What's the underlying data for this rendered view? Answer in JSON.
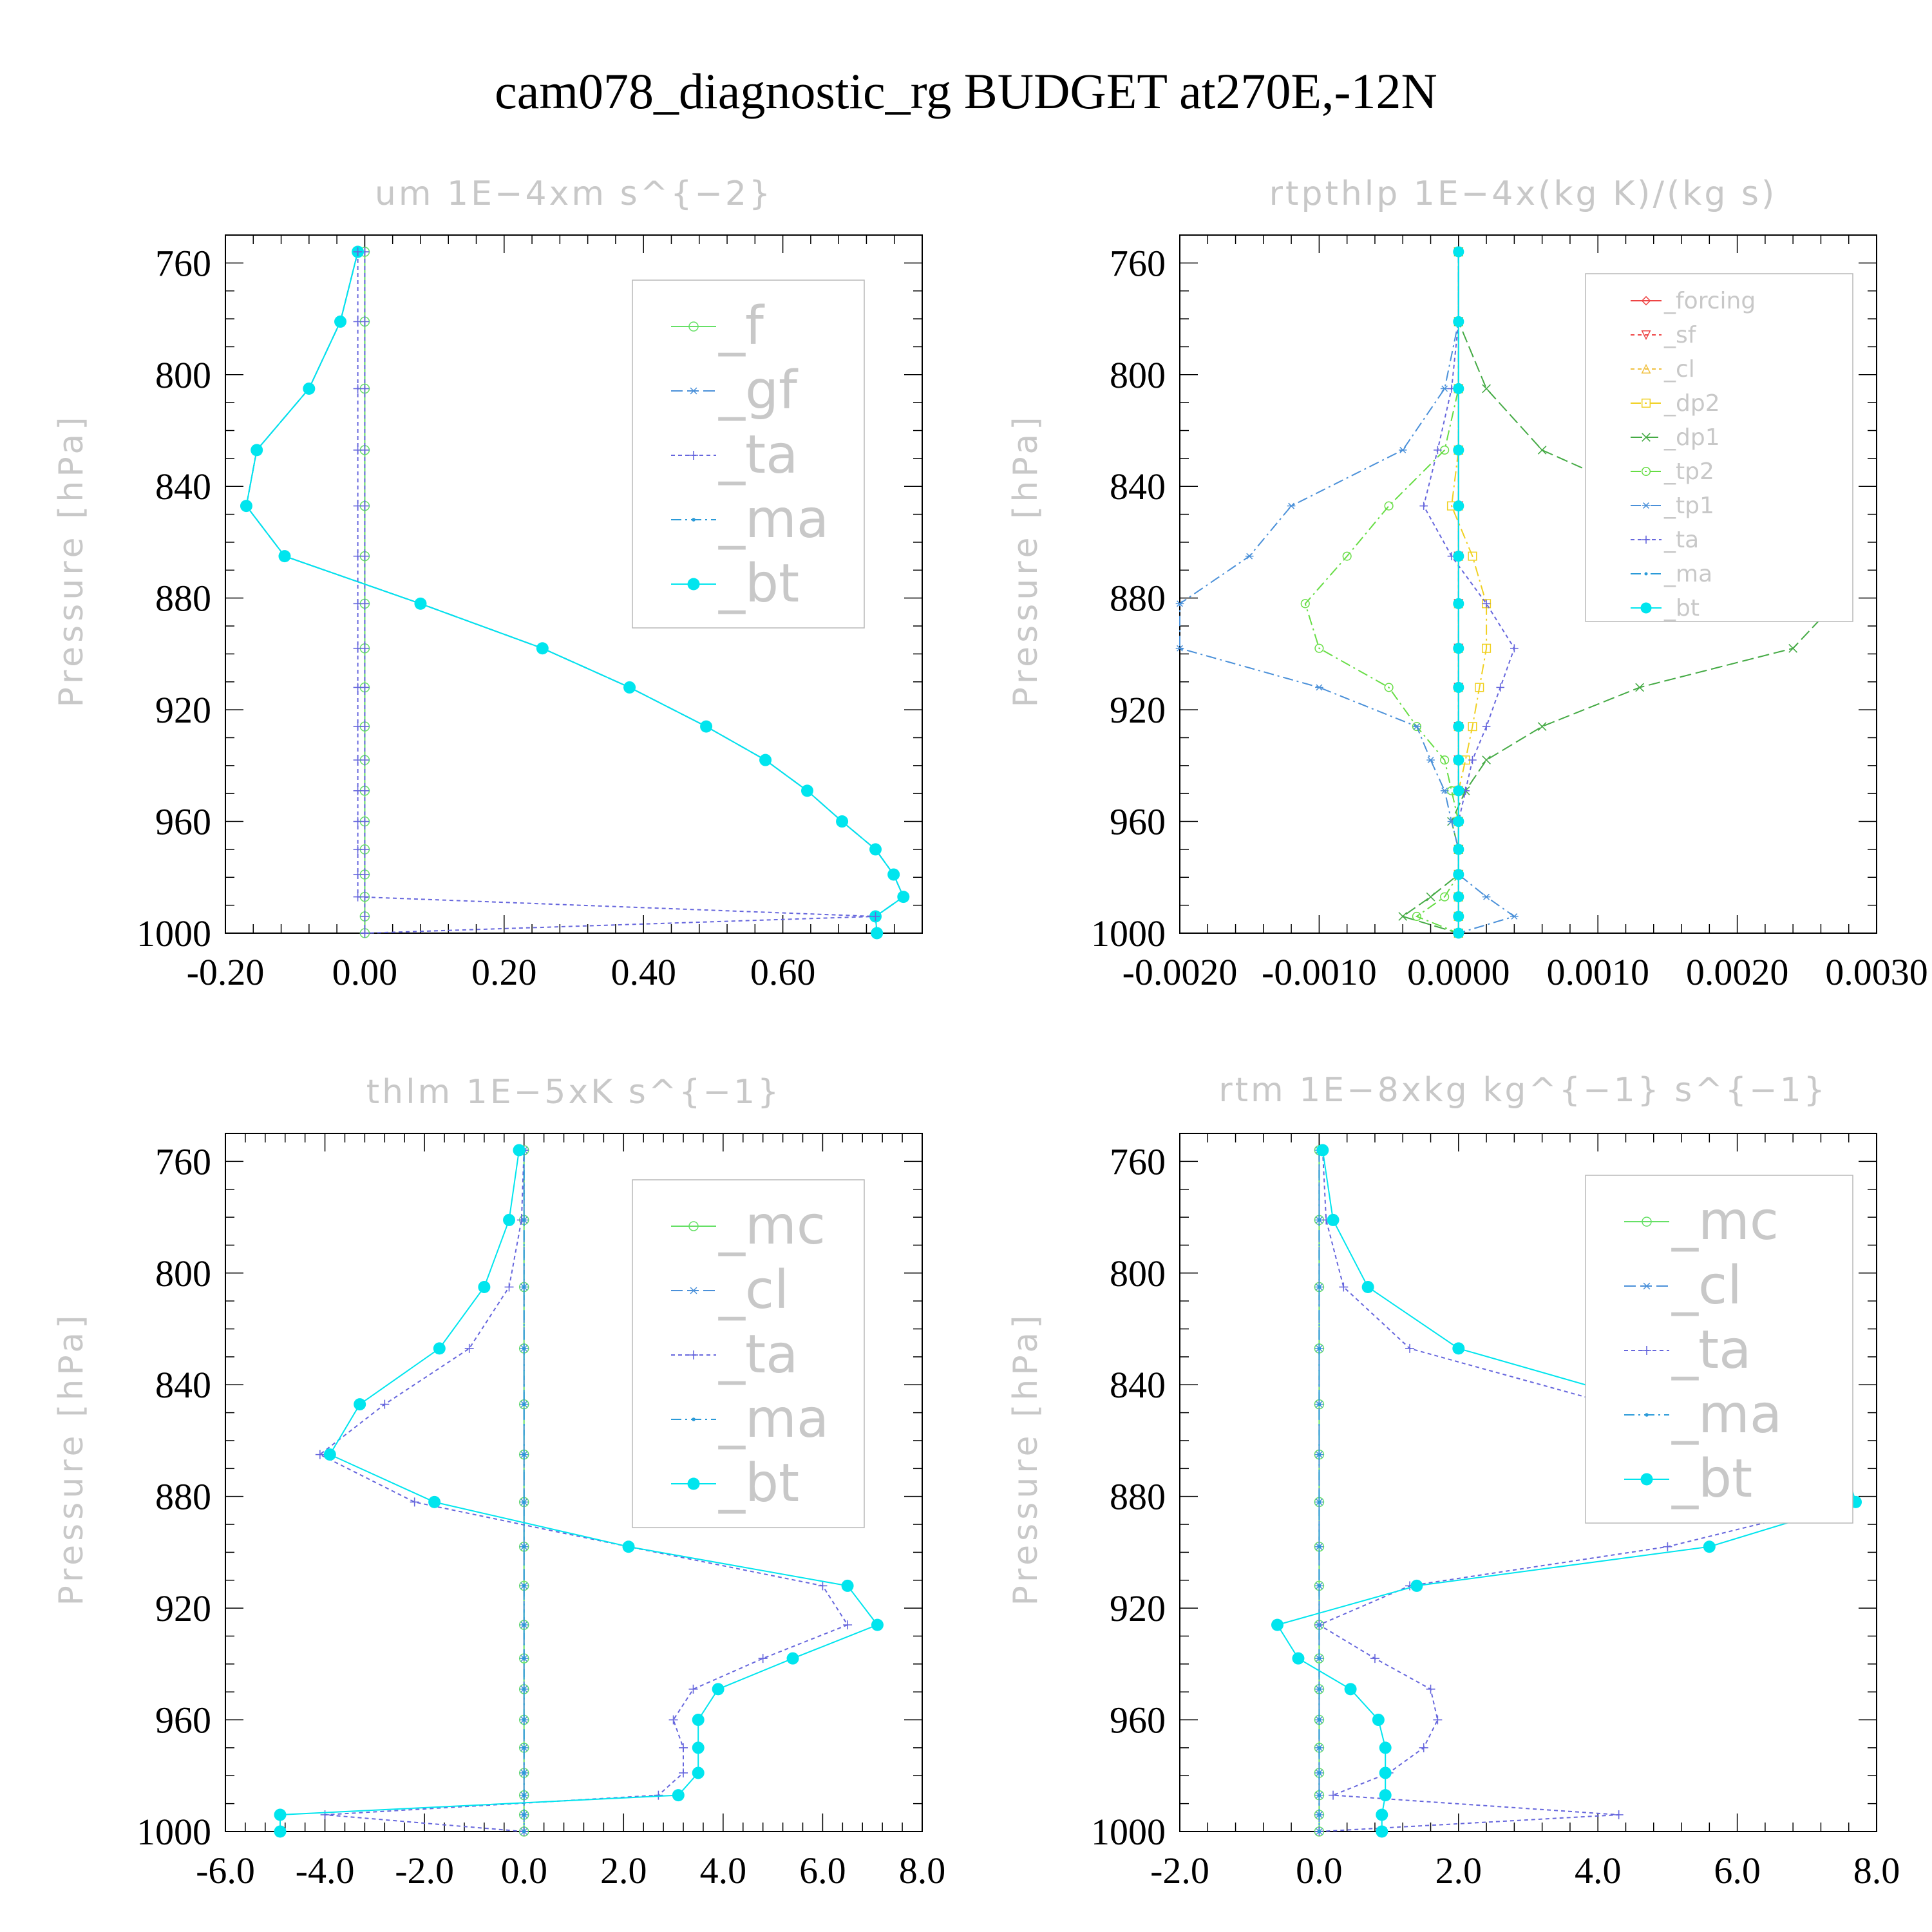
{
  "figure_title": "cam078_diagnostic_rg  BUDGET at270E,-12N",
  "chart_data": [
    {
      "type": "line",
      "title": "um   1E−4xm s^{−2}",
      "ylabel": "Pressure [hPa]",
      "xlabel": "",
      "xlim": [
        -0.2,
        0.8
      ],
      "ylim": [
        1000,
        750
      ],
      "xticks": [
        -0.2,
        0.0,
        0.2,
        0.4,
        0.6
      ],
      "xtick_labels": [
        "-0.20",
        "0.00",
        "0.20",
        "0.40",
        "0.60"
      ],
      "yticks": [
        760,
        800,
        840,
        880,
        920,
        960,
        1000
      ],
      "ytick_labels": [
        "760",
        "800",
        "840",
        "880",
        "920",
        "960",
        "1000"
      ],
      "legend_position": "top-right",
      "legend_size": "large",
      "y": [
        756,
        781,
        805,
        827,
        847,
        865,
        882,
        898,
        912,
        926,
        938,
        949,
        960,
        970,
        979,
        987,
        994,
        1000
      ],
      "series": [
        {
          "name": "_f",
          "color": "#66e066",
          "marker": "circle",
          "dash": "none",
          "values": [
            0,
            0,
            0,
            0,
            0,
            0,
            0,
            0,
            0,
            0,
            0,
            0,
            0,
            0,
            0,
            0,
            0,
            0
          ]
        },
        {
          "name": "_gf",
          "color": "#4a90d9",
          "marker": "star",
          "dash": "long",
          "values": [
            -0.01,
            -0.035,
            -0.08,
            -0.155,
            -0.17,
            -0.115,
            0.08,
            0.255,
            0.38,
            0.49,
            0.575,
            0.635,
            0.685,
            0.733,
            0.759,
            0.773,
            0.733,
            0.735
          ]
        },
        {
          "name": "_ta",
          "color": "#6666dd",
          "marker": "plus",
          "dash": "short",
          "values": [
            0,
            0,
            0,
            0,
            0,
            0,
            0,
            0,
            0,
            0,
            0,
            0,
            0,
            0,
            0,
            0,
            0,
            0
          ]
        },
        {
          "name": "_ma",
          "color": "#2a9ad8",
          "marker": "dot",
          "dash": "dashdot",
          "values": [
            -0.01,
            -0.035,
            -0.08,
            -0.155,
            -0.17,
            -0.115,
            0.08,
            0.255,
            0.38,
            0.49,
            0.575,
            0.635,
            0.685,
            0.733,
            0.759,
            0.773,
            0.733,
            0.735
          ]
        },
        {
          "name": "_bt",
          "color": "#00e5ee",
          "marker": "bigdot",
          "dash": "none",
          "values": [
            -0.01,
            -0.035,
            -0.08,
            -0.155,
            -0.17,
            -0.115,
            0.08,
            0.255,
            0.38,
            0.49,
            0.575,
            0.635,
            0.685,
            0.733,
            0.759,
            0.773,
            0.733,
            0.735
          ]
        },
        {
          "name": "",
          "color": "#6666dd",
          "marker": "plus",
          "dash": "short",
          "values": [
            -0.01,
            -0.01,
            -0.01,
            -0.01,
            -0.01,
            -0.01,
            -0.01,
            -0.01,
            -0.01,
            -0.01,
            -0.01,
            -0.01,
            -0.01,
            -0.01,
            -0.01,
            -0.01,
            0.733,
            0.0
          ]
        }
      ]
    },
    {
      "type": "line",
      "title": "rtpthlp   1E−4x(kg K)/(kg s)",
      "ylabel": "Pressure [hPa]",
      "xlabel": "",
      "xlim": [
        -0.002,
        0.003
      ],
      "ylim": [
        1000,
        750
      ],
      "xticks": [
        -0.002,
        -0.001,
        0.0,
        0.001,
        0.002,
        0.003
      ],
      "xtick_labels": [
        "-0.0020",
        "-0.0010",
        "0.0000",
        "0.0010",
        "0.0020",
        "0.0030"
      ],
      "yticks": [
        760,
        800,
        840,
        880,
        920,
        960,
        1000
      ],
      "ytick_labels": [
        "760",
        "800",
        "840",
        "880",
        "920",
        "960",
        "1000"
      ],
      "legend_position": "top-right",
      "legend_size": "small",
      "y": [
        756,
        781,
        805,
        827,
        847,
        865,
        882,
        898,
        912,
        926,
        938,
        949,
        960,
        970,
        979,
        987,
        994,
        1000
      ],
      "series": [
        {
          "name": "_forcing",
          "color": "#ee4444",
          "marker": "diamond",
          "dash": "none",
          "values": [
            0,
            0,
            0,
            0,
            0,
            0,
            0,
            0,
            0,
            0,
            0,
            0,
            0,
            0,
            0,
            0,
            0,
            0
          ]
        },
        {
          "name": "_sf",
          "color": "#ee4444",
          "marker": "tridown",
          "dash": "short",
          "values": [
            0,
            0,
            0,
            0,
            0,
            0,
            0,
            0,
            0,
            0,
            0,
            0,
            0,
            0,
            0,
            0,
            0,
            0
          ]
        },
        {
          "name": "_cl",
          "color": "#f0c040",
          "marker": "triup",
          "dash": "short",
          "values": [
            0,
            0,
            0,
            0,
            0,
            0,
            0,
            0,
            0,
            0,
            0,
            0,
            0,
            0,
            0,
            0,
            0,
            0
          ]
        },
        {
          "name": "_dp2",
          "color": "#f0d020",
          "marker": "square",
          "dash": "dashdot",
          "values": [
            0,
            0,
            0,
            0,
            -5e-05,
            0.0001,
            0.0002,
            0.0002,
            0.00015,
            0.0001,
            5e-05,
            0,
            0,
            0,
            0,
            0,
            0,
            0
          ]
        },
        {
          "name": "_dp1",
          "color": "#44aa44",
          "marker": "cross",
          "dash": "long",
          "values": [
            0,
            0,
            0.0002,
            0.0006,
            0.0015,
            0.0023,
            0.0027,
            0.0024,
            0.0013,
            0.0006,
            0.0002,
            5e-05,
            -5e-05,
            0,
            0,
            -0.0002,
            -0.0004,
            0
          ]
        },
        {
          "name": "_tp2",
          "color": "#66dd44",
          "marker": "circle",
          "dash": "dashdot",
          "values": [
            0,
            0,
            0,
            -0.0001,
            -0.0005,
            -0.0008,
            -0.0011,
            -0.001,
            -0.0005,
            -0.0003,
            -0.0001,
            -5e-05,
            0,
            0,
            0,
            -0.0001,
            -0.0003,
            0
          ]
        },
        {
          "name": "_tp1",
          "color": "#4a90d9",
          "marker": "star",
          "dash": "dashdot",
          "values": [
            0,
            0,
            -0.0001,
            -0.0004,
            -0.0012,
            -0.0015,
            -0.002,
            -0.002,
            -0.001,
            -0.0003,
            -0.0002,
            -0.0001,
            -5e-05,
            0,
            0,
            0.0002,
            0.0004,
            0
          ]
        },
        {
          "name": "_ta",
          "color": "#6666dd",
          "marker": "plus",
          "dash": "short",
          "values": [
            0,
            0,
            -5e-05,
            -0.00015,
            -0.00025,
            -5e-05,
            0.0002,
            0.0004,
            0.0003,
            0.0002,
            0.0001,
            5e-05,
            0,
            0,
            0,
            0,
            0,
            0
          ]
        },
        {
          "name": "_ma",
          "color": "#2a9ad8",
          "marker": "dot",
          "dash": "dashdot",
          "values": [
            0,
            0,
            0,
            0,
            0,
            0,
            0,
            0,
            0,
            0,
            0,
            0,
            0,
            0,
            0,
            0,
            0,
            0
          ]
        },
        {
          "name": "_bt",
          "color": "#00e5ee",
          "marker": "bigdot",
          "dash": "none",
          "values": [
            0,
            0,
            0,
            0,
            0,
            0,
            0,
            0,
            0,
            0,
            0,
            0,
            0,
            0,
            0,
            0,
            0,
            0
          ]
        }
      ]
    },
    {
      "type": "line",
      "title": "thlm   1E−5xK s^{−1}",
      "ylabel": "Pressure [hPa]",
      "xlabel": "",
      "xlim": [
        -6.0,
        8.0
      ],
      "ylim": [
        1000,
        750
      ],
      "xticks": [
        -6,
        -4,
        -2,
        0,
        2,
        4,
        6,
        8
      ],
      "xtick_labels": [
        "-6.0",
        "-4.0",
        "-2.0",
        "0.0",
        "2.0",
        "4.0",
        "6.0",
        "8.0"
      ],
      "yticks": [
        760,
        800,
        840,
        880,
        920,
        960,
        1000
      ],
      "ytick_labels": [
        "760",
        "800",
        "840",
        "880",
        "920",
        "960",
        "1000"
      ],
      "legend_position": "top-right",
      "legend_size": "large",
      "y": [
        756,
        781,
        805,
        827,
        847,
        865,
        882,
        898,
        912,
        926,
        938,
        949,
        960,
        970,
        979,
        987,
        994,
        1000
      ],
      "series": [
        {
          "name": "_mc",
          "color": "#66e066",
          "marker": "circle",
          "dash": "none",
          "values": [
            0,
            0,
            0,
            0,
            0,
            0,
            0,
            0,
            0,
            0,
            0,
            0,
            0,
            0,
            0,
            0,
            0,
            0
          ]
        },
        {
          "name": "_cl",
          "color": "#4a90d9",
          "marker": "star",
          "dash": "long",
          "values": [
            0,
            0,
            0,
            0,
            0,
            0,
            0,
            0,
            0,
            0,
            0,
            0,
            0,
            0,
            0,
            0,
            0,
            0
          ]
        },
        {
          "name": "_ta",
          "color": "#6666dd",
          "marker": "plus",
          "dash": "short",
          "values": [
            0,
            -0.05,
            -0.3,
            -1.1,
            -2.8,
            -4.1,
            -2.2,
            2.1,
            6.0,
            6.5,
            4.8,
            3.4,
            3.0,
            3.2,
            3.2,
            2.7,
            -4.0,
            0.0
          ]
        },
        {
          "name": "_ma",
          "color": "#2a9ad8",
          "marker": "dot",
          "dash": "dashdot",
          "values": [
            0,
            0,
            0,
            0,
            0,
            0,
            0,
            0,
            0,
            0,
            0,
            0,
            0,
            0,
            0,
            0,
            0,
            0
          ]
        },
        {
          "name": "_bt",
          "color": "#00e5ee",
          "marker": "bigdot",
          "dash": "none",
          "values": [
            -0.1,
            -0.3,
            -0.8,
            -1.7,
            -3.3,
            -3.9,
            -1.8,
            2.1,
            6.5,
            7.1,
            5.4,
            3.9,
            3.5,
            3.5,
            3.5,
            3.1,
            -4.9,
            -4.9
          ]
        }
      ]
    },
    {
      "type": "line",
      "title": "rtm   1E−8xkg kg^{−1} s^{−1}",
      "ylabel": "Pressure [hPa]",
      "xlabel": "",
      "xlim": [
        -2.0,
        8.0
      ],
      "ylim": [
        1000,
        750
      ],
      "xticks": [
        -2,
        0,
        2,
        4,
        6,
        8
      ],
      "xtick_labels": [
        "-2.0",
        "0.0",
        "2.0",
        "4.0",
        "6.0",
        "8.0"
      ],
      "yticks": [
        760,
        800,
        840,
        880,
        920,
        960,
        1000
      ],
      "ytick_labels": [
        "760",
        "800",
        "840",
        "880",
        "920",
        "960",
        "1000"
      ],
      "legend_position": "top-right",
      "legend_size": "large",
      "y": [
        756,
        781,
        805,
        827,
        847,
        865,
        882,
        898,
        912,
        926,
        938,
        949,
        960,
        970,
        979,
        987,
        994,
        1000
      ],
      "series": [
        {
          "name": "_mc",
          "color": "#66e066",
          "marker": "circle",
          "dash": "none",
          "values": [
            0,
            0,
            0,
            0,
            0,
            0,
            0,
            0,
            0,
            0,
            0,
            0,
            0,
            0,
            0,
            0,
            0,
            0
          ]
        },
        {
          "name": "_cl",
          "color": "#4a90d9",
          "marker": "star",
          "dash": "long",
          "values": [
            0,
            0,
            0,
            0,
            0,
            0,
            0,
            0,
            0,
            0,
            0,
            0,
            0,
            0,
            0,
            0,
            0,
            0
          ]
        },
        {
          "name": "_ta",
          "color": "#6666dd",
          "marker": "plus",
          "dash": "short",
          "values": [
            0.05,
            0.1,
            0.35,
            1.3,
            4.2,
            7.2,
            7.6,
            5.0,
            1.3,
            0.0,
            0.8,
            1.6,
            1.7,
            1.5,
            1.0,
            0.2,
            4.3,
            0.0
          ]
        },
        {
          "name": "_ma",
          "color": "#2a9ad8",
          "marker": "dot",
          "dash": "dashdot",
          "values": [
            0,
            0,
            0,
            0,
            0,
            0,
            0,
            0,
            0,
            0,
            0,
            0,
            0,
            0,
            0,
            0,
            0,
            0
          ]
        },
        {
          "name": "_bt",
          "color": "#00e5ee",
          "marker": "bigdot",
          "dash": "none",
          "values": [
            0.05,
            0.2,
            0.7,
            2.0,
            4.8,
            7.5,
            7.7,
            5.6,
            1.4,
            -0.6,
            -0.3,
            0.45,
            0.85,
            0.95,
            0.95,
            0.95,
            0.9,
            0.9
          ]
        }
      ]
    }
  ]
}
